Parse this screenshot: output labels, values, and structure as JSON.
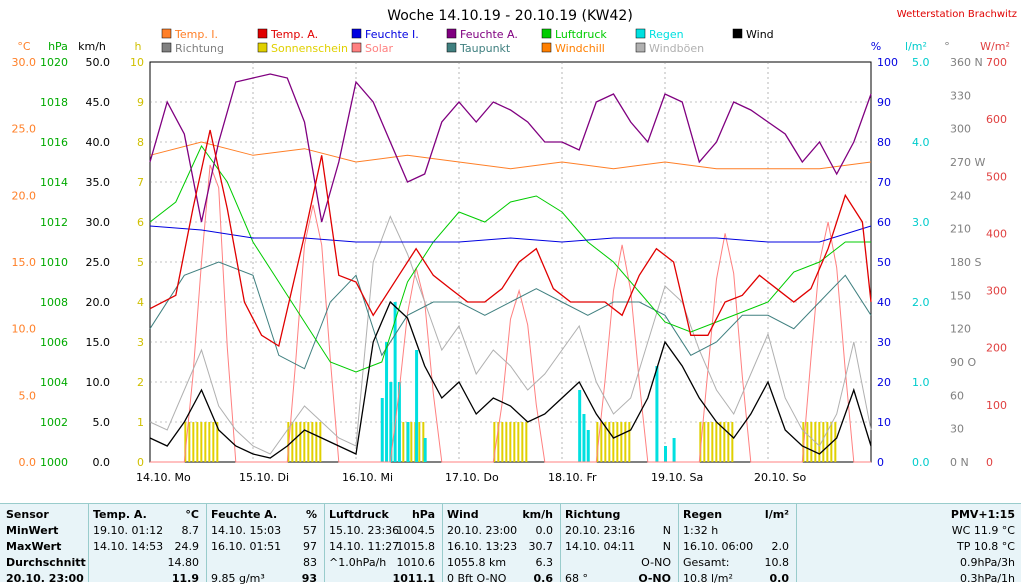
{
  "header": {
    "title": "Woche 14.10.19 - 20.10.19 (KW42)",
    "station": "Wetterstation Brachwitz"
  },
  "legend": [
    {
      "label": "Temp. I.",
      "color": "#ff7f27"
    },
    {
      "label": "Temp. A.",
      "color": "#e00000"
    },
    {
      "label": "Feuchte I.",
      "color": "#0000e0"
    },
    {
      "label": "Feuchte A.",
      "color": "#800080"
    },
    {
      "label": "Luftdruck",
      "color": "#00cc00"
    },
    {
      "label": "Regen",
      "color": "#00e0e0"
    },
    {
      "label": "Wind",
      "color": "#000000"
    },
    {
      "label": "Richtung",
      "color": "#808080"
    },
    {
      "label": "Sonnenschein",
      "color": "#e0d000"
    },
    {
      "label": "Solar",
      "color": "#ff8080"
    },
    {
      "label": "Taupunkt",
      "color": "#408080"
    },
    {
      "label": "Windchill",
      "color": "#ff7f00"
    },
    {
      "label": "Windböen",
      "color": "#b0b0b0"
    }
  ],
  "axes": {
    "temp": {
      "unit": "°C",
      "color": "#ff7f27",
      "ticks": [
        "0.0",
        "5.0",
        "10.0",
        "15.0",
        "20.0",
        "25.0",
        "30.0"
      ]
    },
    "press": {
      "unit": "hPa",
      "color": "#00aa00",
      "ticks": [
        "1000",
        "1002",
        "1004",
        "1006",
        "1008",
        "1010",
        "1012",
        "1014",
        "1016",
        "1018",
        "1020"
      ]
    },
    "wind": {
      "unit": "km/h",
      "color": "#000000",
      "ticks": [
        "0.0",
        "5.0",
        "10.0",
        "15.0",
        "20.0",
        "25.0",
        "30.0",
        "35.0",
        "40.0",
        "45.0",
        "50.0"
      ]
    },
    "sun": {
      "unit": "h",
      "color": "#d0c000",
      "ticks": [
        "0",
        "1",
        "2",
        "3",
        "4",
        "5",
        "6",
        "7",
        "8",
        "9",
        "10"
      ]
    },
    "hum": {
      "unit": "%",
      "color": "#0000e0",
      "ticks": [
        "0",
        "10",
        "20",
        "30",
        "40",
        "50",
        "60",
        "70",
        "80",
        "90",
        "100"
      ]
    },
    "rain": {
      "unit": "l/m²",
      "color": "#00cccc",
      "ticks": [
        "0.0",
        "1.0",
        "2.0",
        "3.0",
        "4.0",
        "5.0"
      ]
    },
    "dir": {
      "unit": "°",
      "color": "#808080",
      "ticks": [
        "0 N",
        "30",
        "60",
        "90 O",
        "120",
        "150",
        "180 S",
        "210",
        "240",
        "270 W",
        "300",
        "330",
        "360 N"
      ]
    },
    "solar": {
      "unit": "W/m²",
      "color": "#e04040",
      "ticks": [
        "0",
        "100",
        "200",
        "300",
        "400",
        "500",
        "600",
        "700"
      ]
    }
  },
  "chart_data": {
    "type": "line",
    "title": "Woche 14.10.19 - 20.10.19 (KW42)",
    "x_labels": [
      "14.10. Mo",
      "15.10. Di",
      "16.10. Mi",
      "17.10. Do",
      "18.10. Fr",
      "19.10. Sa",
      "20.10. So"
    ],
    "x_range_hours": [
      0,
      168
    ],
    "grid": true,
    "legend_position": "top",
    "series": [
      {
        "name": "Temp. A.",
        "unit": "°C",
        "color": "#e00000",
        "x": [
          0,
          6,
          10,
          14,
          18,
          22,
          26,
          30,
          36,
          40,
          44,
          48,
          52,
          58,
          62,
          66,
          70,
          74,
          78,
          82,
          86,
          90,
          94,
          98,
          102,
          106,
          110,
          114,
          118,
          122,
          126,
          130,
          134,
          138,
          142,
          146,
          150,
          154,
          158,
          162,
          166,
          168
        ],
        "y": [
          11.5,
          12.5,
          19,
          24.9,
          19,
          12,
          9.5,
          8.7,
          17,
          23,
          14,
          13.5,
          11,
          14,
          16,
          14,
          13,
          12,
          12,
          13,
          15,
          16,
          13,
          12,
          12,
          12,
          11,
          14,
          16,
          15,
          9.5,
          9.5,
          12,
          12.5,
          14,
          13,
          12,
          13,
          16,
          20,
          18,
          12
        ]
      },
      {
        "name": "Temp. I.",
        "unit": "°C",
        "color": "#ff7f27",
        "x": [
          0,
          12,
          24,
          36,
          48,
          60,
          72,
          84,
          96,
          108,
          120,
          132,
          144,
          156,
          168
        ],
        "y": [
          23,
          24,
          23,
          23.5,
          22.5,
          23,
          22.5,
          22,
          22.5,
          22,
          22.5,
          22,
          22,
          22,
          22.5
        ]
      },
      {
        "name": "Feuchte A.",
        "unit": "%",
        "color": "#800080",
        "x": [
          0,
          4,
          8,
          12,
          16,
          20,
          24,
          28,
          32,
          36,
          40,
          44,
          48,
          52,
          56,
          60,
          64,
          68,
          72,
          76,
          80,
          84,
          88,
          92,
          96,
          100,
          104,
          108,
          112,
          116,
          120,
          124,
          128,
          132,
          136,
          140,
          144,
          148,
          152,
          156,
          160,
          164,
          168
        ],
        "y": [
          75,
          90,
          82,
          60,
          80,
          95,
          96,
          97,
          96,
          85,
          60,
          75,
          95,
          90,
          80,
          70,
          72,
          85,
          90,
          85,
          90,
          88,
          85,
          80,
          80,
          78,
          90,
          92,
          85,
          80,
          92,
          90,
          75,
          80,
          90,
          88,
          85,
          82,
          75,
          80,
          72,
          80,
          92
        ]
      },
      {
        "name": "Feuchte I.",
        "unit": "%",
        "color": "#0000e0",
        "x": [
          0,
          12,
          24,
          36,
          48,
          60,
          72,
          84,
          96,
          108,
          120,
          132,
          144,
          156,
          168
        ],
        "y": [
          59,
          58,
          56,
          56,
          55,
          55,
          55,
          56,
          55,
          56,
          56,
          56,
          55,
          55,
          59
        ]
      },
      {
        "name": "Luftdruck",
        "unit": "hPa",
        "color": "#00cc00",
        "x": [
          0,
          6,
          12,
          18,
          24,
          30,
          36,
          42,
          48,
          54,
          60,
          66,
          72,
          78,
          84,
          90,
          96,
          102,
          108,
          114,
          120,
          126,
          132,
          138,
          144,
          150,
          156,
          162,
          168
        ],
        "y": [
          1012,
          1013,
          1015.8,
          1014,
          1011,
          1009,
          1007,
          1005,
          1004.5,
          1005,
          1009,
          1011,
          1012.5,
          1012,
          1013,
          1013.3,
          1012.5,
          1011,
          1010,
          1008.5,
          1007,
          1006.5,
          1007,
          1007.5,
          1008,
          1009.5,
          1010,
          1011,
          1011
        ]
      },
      {
        "name": "Taupunkt",
        "unit": "°C",
        "color": "#408080",
        "x": [
          0,
          8,
          16,
          24,
          30,
          36,
          42,
          48,
          54,
          60,
          66,
          72,
          78,
          84,
          90,
          96,
          102,
          108,
          114,
          120,
          126,
          132,
          138,
          144,
          150,
          156,
          162,
          168
        ],
        "y": [
          10,
          14,
          15,
          14,
          8,
          7,
          12,
          14,
          8,
          11,
          12,
          12,
          11,
          12,
          13,
          12,
          11,
          12,
          12,
          11,
          8,
          9,
          11,
          11,
          10,
          12,
          14,
          11
        ]
      },
      {
        "name": "Wind",
        "unit": "km/h",
        "color": "#000000",
        "x": [
          0,
          4,
          8,
          12,
          16,
          20,
          24,
          28,
          32,
          36,
          40,
          44,
          48,
          52,
          56,
          60,
          64,
          68,
          72,
          76,
          80,
          84,
          88,
          92,
          96,
          100,
          104,
          108,
          112,
          116,
          120,
          124,
          128,
          132,
          136,
          140,
          144,
          148,
          152,
          156,
          160,
          164,
          168
        ],
        "y": [
          3,
          2,
          5,
          9,
          4,
          2,
          1,
          0.5,
          2,
          4,
          3,
          2,
          1,
          15,
          20,
          18,
          12,
          8,
          10,
          6,
          8,
          7,
          5,
          6,
          8,
          10,
          6,
          3,
          4,
          8,
          15,
          12,
          8,
          5,
          3,
          6,
          10,
          4,
          2,
          1,
          3,
          9,
          2
        ]
      },
      {
        "name": "Windböen",
        "unit": "km/h",
        "color": "#b0b0b0",
        "x": [
          0,
          4,
          8,
          12,
          16,
          20,
          24,
          28,
          32,
          36,
          40,
          44,
          48,
          52,
          56,
          60,
          64,
          68,
          72,
          76,
          80,
          84,
          88,
          92,
          96,
          100,
          104,
          108,
          112,
          116,
          120,
          124,
          128,
          132,
          136,
          140,
          144,
          148,
          152,
          156,
          160,
          164,
          168
        ],
        "y": [
          5,
          4,
          9,
          14,
          7,
          4,
          2,
          1,
          4,
          7,
          5,
          3,
          2,
          25,
          30.7,
          26,
          20,
          14,
          17,
          11,
          14,
          12,
          9,
          11,
          14,
          17,
          10,
          6,
          8,
          15,
          22,
          20,
          14,
          9,
          6,
          11,
          16,
          8,
          4,
          2,
          6,
          15,
          4
        ]
      },
      {
        "name": "Solar",
        "unit": "W/m²",
        "color": "#ff8080",
        "x": [
          0,
          8,
          10,
          12,
          14,
          16,
          18,
          20,
          24,
          32,
          34,
          36,
          38,
          40,
          42,
          44,
          48,
          56,
          58,
          60,
          62,
          64,
          66,
          68,
          72,
          80,
          82,
          84,
          86,
          88,
          90,
          92,
          96,
          104,
          106,
          108,
          110,
          112,
          114,
          116,
          120,
          128,
          130,
          132,
          134,
          136,
          138,
          140,
          144,
          152,
          154,
          156,
          158,
          160,
          162,
          164,
          168
        ],
        "y": [
          0,
          0,
          150,
          350,
          520,
          480,
          200,
          0,
          0,
          0,
          180,
          380,
          450,
          380,
          180,
          0,
          0,
          0,
          120,
          260,
          340,
          280,
          120,
          0,
          0,
          0,
          100,
          250,
          300,
          240,
          100,
          0,
          0,
          0,
          140,
          300,
          380,
          300,
          140,
          0,
          0,
          0,
          160,
          320,
          400,
          330,
          150,
          0,
          0,
          0,
          180,
          350,
          420,
          340,
          160,
          0,
          0
        ]
      },
      {
        "name": "Sonnenschein",
        "unit": "h",
        "color": "#e0d000",
        "x": [
          12,
          36,
          60,
          84,
          108,
          132,
          156
        ],
        "y": [
          1.0,
          1.0,
          1.0,
          1.0,
          1.0,
          1.0,
          1.0
        ]
      },
      {
        "name": "Regen",
        "unit": "l/m²",
        "color": "#00e0e0",
        "x": [
          54,
          55,
          56,
          57,
          58,
          60,
          62,
          64,
          100,
          101,
          102,
          118,
          120,
          122
        ],
        "y": [
          0.8,
          1.5,
          1.0,
          2.0,
          1.0,
          0.5,
          1.4,
          0.3,
          0.9,
          0.6,
          0.4,
          1.2,
          0.2,
          0.3
        ]
      }
    ]
  },
  "table": {
    "sensor": {
      "header": "Sensor",
      "rows": [
        "MinWert",
        "MaxWert",
        "Durchschnitt",
        "20.10. 23:00"
      ]
    },
    "temp": {
      "header": "Temp. A.",
      "unit": "°C",
      "rows": [
        [
          "19.10. 01:12",
          "8.7"
        ],
        [
          "14.10. 14:53",
          "24.9"
        ],
        [
          "",
          "14.80"
        ],
        [
          "",
          "11.9"
        ]
      ]
    },
    "hum": {
      "header": "Feuchte A.",
      "unit": "%",
      "rows": [
        [
          "14.10. 15:03",
          "57"
        ],
        [
          "16.10. 01:51",
          "97"
        ],
        [
          "",
          "83"
        ],
        [
          "9.85 g/m³",
          "93"
        ]
      ]
    },
    "press": {
      "header": "Luftdruck",
      "unit": "hPa",
      "rows": [
        [
          "15.10. 23:36",
          "1004.5"
        ],
        [
          "14.10. 11:27",
          "1015.8"
        ],
        [
          "^1.0hPa/h",
          "1010.6"
        ],
        [
          "",
          "1011.1"
        ]
      ]
    },
    "wind": {
      "header": "Wind",
      "unit": "km/h",
      "rows": [
        [
          "20.10. 23:00",
          "0.0"
        ],
        [
          "16.10. 13:23",
          "30.7"
        ],
        [
          "1055.8 km",
          "6.3"
        ],
        [
          "0 Bft O-NO",
          "0.6"
        ]
      ]
    },
    "dir": {
      "header": "Richtung",
      "unit": "",
      "rows": [
        [
          "20.10. 23:16",
          "N"
        ],
        [
          "14.10. 04:11",
          "N"
        ],
        [
          "",
          "O-NO"
        ],
        [
          "68 °",
          "O-NO"
        ]
      ]
    },
    "rain": {
      "header": "Regen",
      "unit": "l/m²",
      "rows": [
        [
          "1:32 h",
          ""
        ],
        [
          "16.10. 06:00",
          "2.0"
        ],
        [
          "Gesamt:",
          "10.8"
        ],
        [
          "10.8 l/m²",
          "0.0"
        ]
      ]
    },
    "pmv": {
      "header": "PMV+1:15",
      "rows": [
        "WC 11.9 °C",
        "TP 10.8 °C",
        "0.9hPa/3h",
        "0.3hPa/1h"
      ]
    }
  }
}
